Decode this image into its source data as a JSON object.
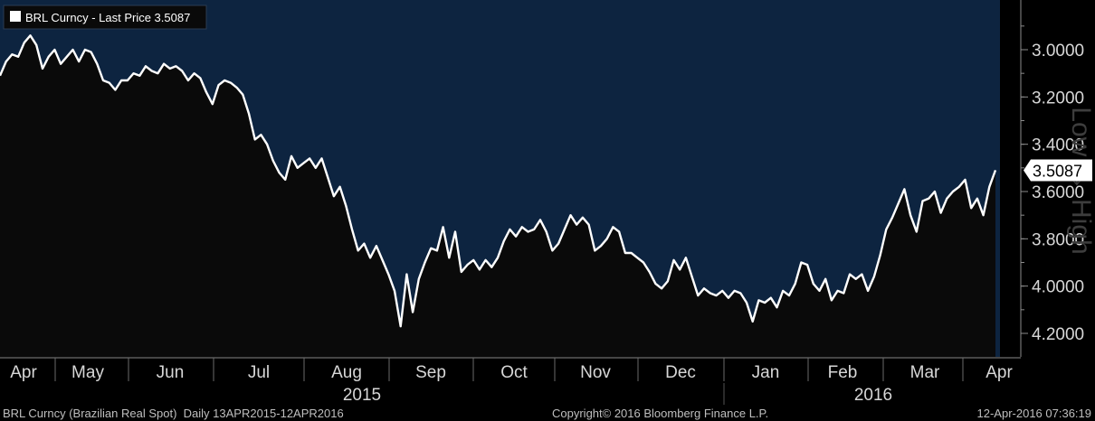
{
  "chart_data": {
    "type": "area",
    "legend": "BRL Curncy - Last Price 3.5087",
    "last_price_label": "3.5087",
    "axis_side_label": "Low ↔ High",
    "y_axis": {
      "min": 2.9,
      "max": 4.3,
      "inverted": true,
      "ticks": [
        "3.0000",
        "3.2000",
        "3.4000",
        "3.6000",
        "3.8000",
        "4.0000",
        "4.2000"
      ],
      "tick_values": [
        3.0,
        3.2,
        3.4,
        3.6,
        3.8,
        4.0,
        4.2
      ]
    },
    "x_axis": {
      "months": [
        "Apr",
        "May",
        "Jun",
        "Jul",
        "Aug",
        "Sep",
        "Oct",
        "Nov",
        "Dec",
        "Jan",
        "Feb",
        "Mar",
        "Apr"
      ],
      "years": [
        "2015",
        "2016"
      ]
    },
    "x_start": "2015-04-13",
    "x_end": "2016-04-12",
    "grid": false,
    "colors": {
      "plot_bg": "#0d2440",
      "area_fill": "#0a0a0a",
      "line": "#ffffff"
    },
    "series": [
      {
        "values": [
          3.11,
          3.05,
          3.02,
          3.03,
          2.97,
          2.94,
          2.98,
          3.08,
          3.03,
          3.0,
          3.06,
          3.03,
          3.0,
          3.05,
          3.0,
          3.01,
          3.06,
          3.13,
          3.14,
          3.17,
          3.13,
          3.13,
          3.1,
          3.11,
          3.07,
          3.09,
          3.1,
          3.06,
          3.08,
          3.07,
          3.09,
          3.13,
          3.1,
          3.12,
          3.18,
          3.23,
          3.15,
          3.13,
          3.14,
          3.16,
          3.19,
          3.27,
          3.38,
          3.36,
          3.4,
          3.47,
          3.52,
          3.55,
          3.45,
          3.5,
          3.48,
          3.46,
          3.5,
          3.46,
          3.54,
          3.62,
          3.58,
          3.66,
          3.76,
          3.85,
          3.82,
          3.88,
          3.83,
          3.89,
          3.95,
          4.02,
          4.17,
          3.95,
          4.11,
          3.97,
          3.9,
          3.84,
          3.85,
          3.75,
          3.88,
          3.77,
          3.94,
          3.91,
          3.89,
          3.93,
          3.89,
          3.92,
          3.88,
          3.81,
          3.76,
          3.79,
          3.75,
          3.77,
          3.76,
          3.72,
          3.77,
          3.85,
          3.82,
          3.76,
          3.7,
          3.74,
          3.71,
          3.74,
          3.85,
          3.83,
          3.8,
          3.75,
          3.77,
          3.86,
          3.86,
          3.88,
          3.9,
          3.94,
          3.99,
          4.01,
          3.98,
          3.89,
          3.93,
          3.88,
          3.96,
          4.04,
          4.01,
          4.03,
          4.04,
          4.02,
          4.05,
          4.02,
          4.03,
          4.07,
          4.15,
          4.06,
          4.07,
          4.05,
          4.09,
          4.02,
          4.04,
          3.99,
          3.9,
          3.91,
          3.99,
          4.02,
          3.97,
          4.06,
          4.02,
          4.03,
          3.95,
          3.97,
          3.95,
          4.02,
          3.96,
          3.87,
          3.76,
          3.71,
          3.65,
          3.59,
          3.7,
          3.77,
          3.64,
          3.63,
          3.6,
          3.69,
          3.63,
          3.6,
          3.58,
          3.55,
          3.67,
          3.63,
          3.7,
          3.58,
          3.51
        ]
      }
    ]
  },
  "footer": {
    "left": "BRL Curncy (Brazilian Real Spot)  Daily 13APR2015-12APR2016",
    "center": "Copyright© 2016 Bloomberg Finance L.P.",
    "right": "12-Apr-2016 07:36:19"
  }
}
